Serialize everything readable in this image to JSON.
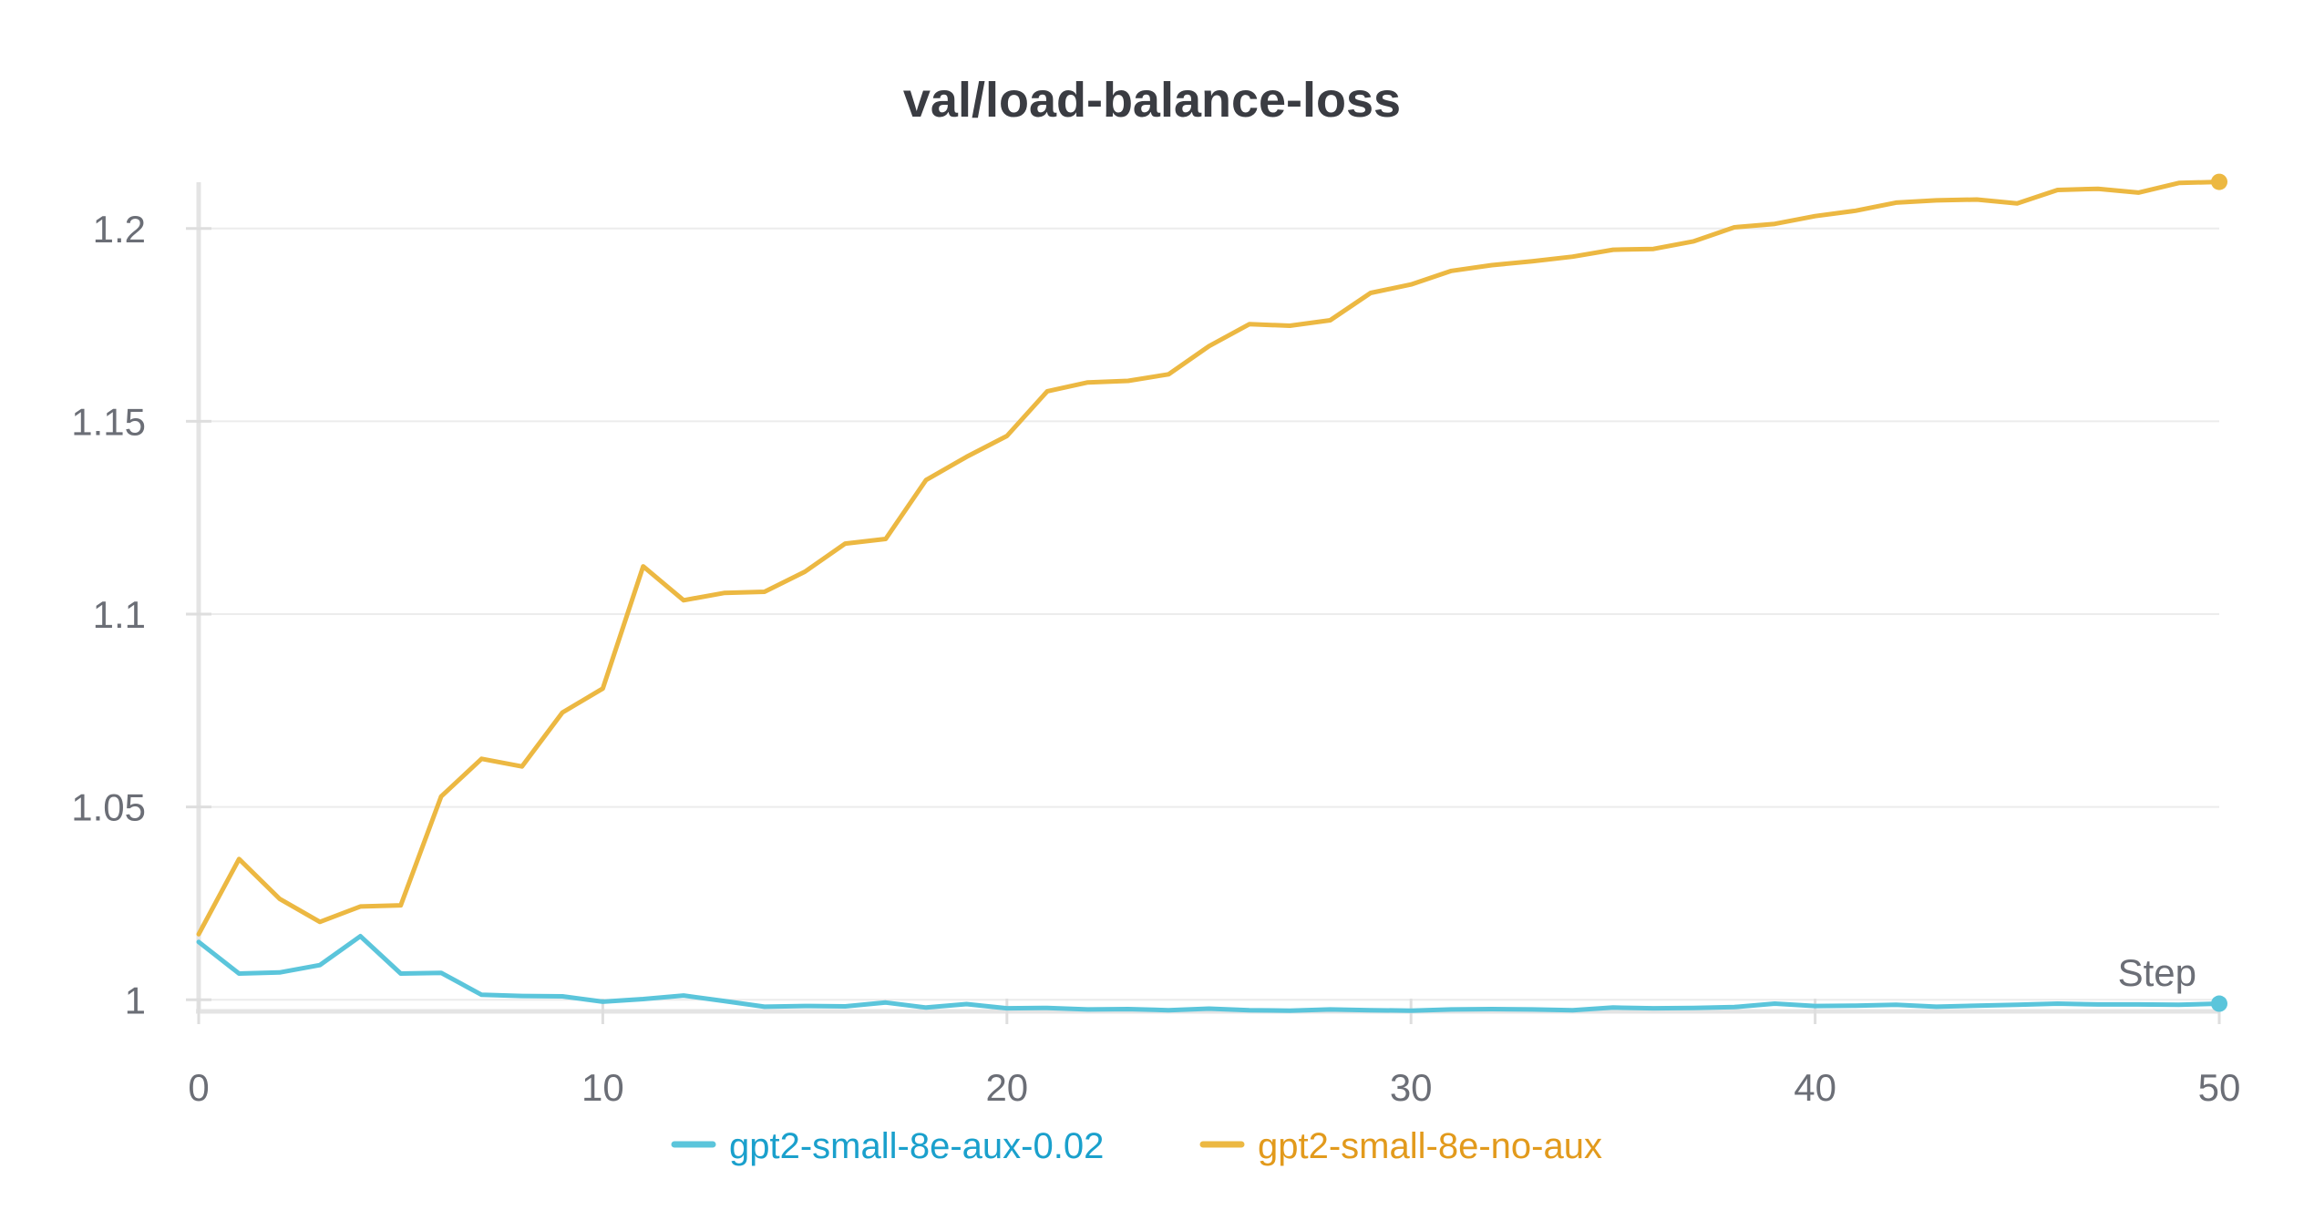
{
  "chart_data": {
    "type": "line",
    "title": "val/load-balance-loss",
    "xlabel": "Step",
    "ylabel": "",
    "xlim": [
      0,
      50
    ],
    "ylim": [
      0.997,
      1.212
    ],
    "x_ticks": [
      0,
      10,
      20,
      30,
      40,
      50
    ],
    "x_tick_labels": [
      "0",
      "10",
      "20",
      "30",
      "40",
      "50"
    ],
    "y_ticks": [
      1.0,
      1.05,
      1.1,
      1.15,
      1.2
    ],
    "y_tick_labels": [
      "1",
      "1.05",
      "1.1",
      "1.15",
      "1.2"
    ],
    "grid": "horizontal",
    "legend_position": "bottom",
    "x": [
      0,
      1,
      2,
      3,
      4,
      5,
      6,
      7,
      8,
      9,
      10,
      11,
      12,
      13,
      14,
      15,
      16,
      17,
      18,
      19,
      20,
      21,
      22,
      23,
      24,
      25,
      26,
      27,
      28,
      29,
      30,
      31,
      32,
      33,
      34,
      35,
      36,
      37,
      38,
      39,
      40,
      41,
      42,
      43,
      44,
      45,
      46,
      47,
      48,
      49,
      50
    ],
    "series": [
      {
        "name": "gpt2-small-8e-aux-0.02",
        "color": "#5bc5db",
        "legend_text_color": "#1aa0cc",
        "values": [
          1.015,
          1.0068,
          1.0071,
          1.009,
          1.0165,
          1.0068,
          1.007,
          1.0013,
          1.001,
          1.0009,
          0.9995,
          1.0002,
          1.0011,
          0.9997,
          0.9982,
          0.9984,
          0.9983,
          0.9993,
          0.998,
          0.9989,
          0.9978,
          0.9979,
          0.9975,
          0.9976,
          0.9973,
          0.9977,
          0.9973,
          0.9972,
          0.9975,
          0.9973,
          0.9972,
          0.9975,
          0.9976,
          0.9975,
          0.9973,
          0.998,
          0.9978,
          0.9979,
          0.9981,
          0.999,
          0.9984,
          0.9985,
          0.9987,
          0.9982,
          0.9985,
          0.9987,
          0.999,
          0.9988,
          0.9988,
          0.9987,
          0.999
        ]
      },
      {
        "name": "gpt2-small-8e-no-aux",
        "color": "#ecb842",
        "legend_text_color": "#e29a1c",
        "values": [
          1.017,
          1.0365,
          1.0262,
          1.0202,
          1.0242,
          1.0245,
          1.0527,
          1.0625,
          1.0605,
          1.0745,
          1.0807,
          1.1124,
          1.1036,
          1.1055,
          1.1058,
          1.111,
          1.1183,
          1.1195,
          1.1348,
          1.1408,
          1.1462,
          1.1578,
          1.1601,
          1.1605,
          1.1622,
          1.1695,
          1.1752,
          1.1748,
          1.1762,
          1.1833,
          1.1855,
          1.189,
          1.1905,
          1.1915,
          1.1927,
          1.1945,
          1.1947,
          1.1967,
          1.2003,
          1.2012,
          1.2032,
          1.2046,
          1.2067,
          1.2073,
          1.2075,
          1.2065,
          1.21,
          1.2103,
          1.2093,
          1.2118,
          1.2121
        ]
      }
    ]
  }
}
